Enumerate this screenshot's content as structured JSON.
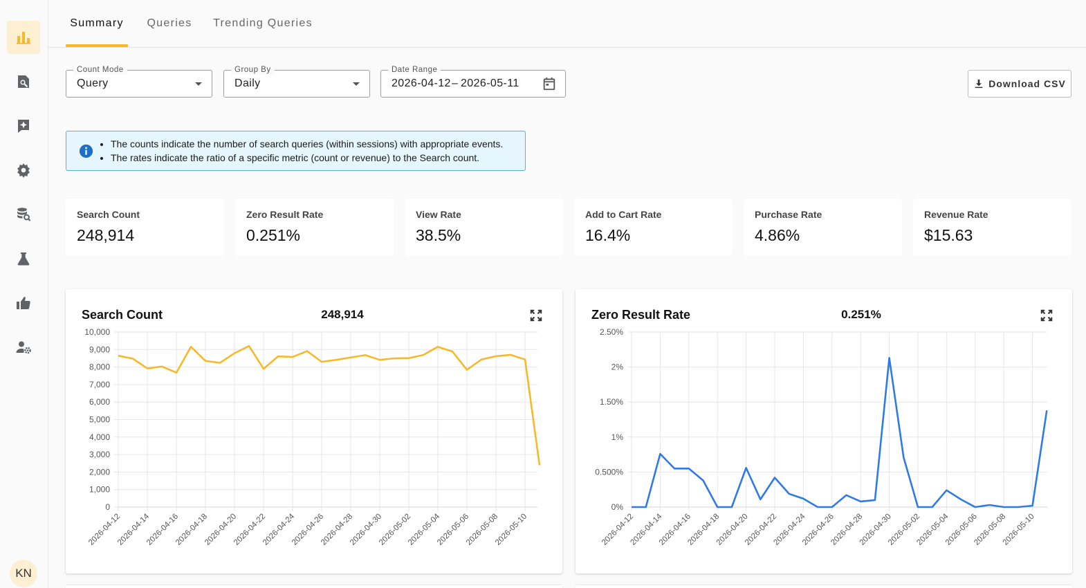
{
  "sidebar": {
    "items": [
      {
        "icon": "bar-chart-icon",
        "active": true
      },
      {
        "icon": "search-document-icon",
        "active": false
      },
      {
        "icon": "sparkle-icon",
        "active": false
      },
      {
        "icon": "gear-icon",
        "active": false
      },
      {
        "icon": "database-search-icon",
        "active": false
      },
      {
        "icon": "flask-icon",
        "active": false
      },
      {
        "icon": "thumbs-up-icon",
        "active": false
      },
      {
        "icon": "user-settings-icon",
        "active": false
      }
    ],
    "avatar": "KN"
  },
  "tabs": [
    {
      "label": "Summary",
      "active": true
    },
    {
      "label": "Queries",
      "active": false
    },
    {
      "label": "Trending Queries",
      "active": false
    }
  ],
  "filters": {
    "count_mode": {
      "label": "Count Mode",
      "value": "Query"
    },
    "group_by": {
      "label": "Group By",
      "value": "Daily"
    },
    "date_range": {
      "label": "Date Range",
      "start": "2026-04-12",
      "separator": "–",
      "end": "2026-05-11"
    }
  },
  "download_label": "Download CSV",
  "info": {
    "lines": [
      "The counts indicate the number of search queries (within sessions) with appropriate events.",
      "The rates indicate the ratio of a specific metric (count or revenue) to the Search count."
    ]
  },
  "metrics": [
    {
      "label": "Search Count",
      "value": "248,914"
    },
    {
      "label": "Zero Result Rate",
      "value": "0.251%"
    },
    {
      "label": "View Rate",
      "value": "38.5%"
    },
    {
      "label": "Add to Cart Rate",
      "value": "16.4%"
    },
    {
      "label": "Purchase Rate",
      "value": "4.86%"
    },
    {
      "label": "Revenue Rate",
      "value": "$15.63"
    }
  ],
  "colors": {
    "accent": "#f6b92b",
    "search_line": "#f6b92b",
    "zero_line": "#2f7ae5",
    "info_bg": "#e5f6fd"
  },
  "chart_data": [
    {
      "type": "line",
      "title": "Search Count",
      "total": "248,914",
      "x": [
        "2026-04-12",
        "2026-04-13",
        "2026-04-14",
        "2026-04-15",
        "2026-04-16",
        "2026-04-17",
        "2026-04-18",
        "2026-04-19",
        "2026-04-20",
        "2026-04-21",
        "2026-04-22",
        "2026-04-23",
        "2026-04-24",
        "2026-04-25",
        "2026-04-26",
        "2026-04-27",
        "2026-04-28",
        "2026-04-29",
        "2026-04-30",
        "2026-05-01",
        "2026-05-02",
        "2026-05-03",
        "2026-05-04",
        "2026-05-05",
        "2026-05-06",
        "2026-05-07",
        "2026-05-08",
        "2026-05-09",
        "2026-05-10",
        "2026-05-11"
      ],
      "x_tick_labels": [
        "2026-04-12",
        "2026-04-14",
        "2026-04-16",
        "2026-04-18",
        "2026-04-20",
        "2026-04-22",
        "2026-04-24",
        "2026-04-26",
        "2026-04-28",
        "2026-04-30",
        "2026-05-02",
        "2026-05-04",
        "2026-05-06",
        "2026-05-08",
        "2026-05-10"
      ],
      "values": [
        8650,
        8480,
        7920,
        8030,
        7680,
        9160,
        8350,
        8240,
        8790,
        9200,
        7900,
        8610,
        8580,
        8910,
        8300,
        8410,
        8550,
        8680,
        8410,
        8500,
        8510,
        8690,
        9160,
        8890,
        7840,
        8430,
        8620,
        8700,
        8430,
        2390
      ],
      "ylim": [
        0,
        10000
      ],
      "y_tick_labels": [
        "0",
        "1,000",
        "2,000",
        "3,000",
        "4,000",
        "5,000",
        "6,000",
        "7,000",
        "8,000",
        "9,000",
        "10,000"
      ],
      "grid": true,
      "legend": "none"
    },
    {
      "type": "line",
      "title": "Zero Result Rate",
      "total": "0.251%",
      "x": [
        "2026-04-12",
        "2026-04-13",
        "2026-04-14",
        "2026-04-15",
        "2026-04-16",
        "2026-04-17",
        "2026-04-18",
        "2026-04-19",
        "2026-04-20",
        "2026-04-21",
        "2026-04-22",
        "2026-04-23",
        "2026-04-24",
        "2026-04-25",
        "2026-04-26",
        "2026-04-27",
        "2026-04-28",
        "2026-04-29",
        "2026-04-30",
        "2026-05-01",
        "2026-05-02",
        "2026-05-03",
        "2026-05-04",
        "2026-05-05",
        "2026-05-06",
        "2026-05-07",
        "2026-05-08",
        "2026-05-09",
        "2026-05-10",
        "2026-05-11"
      ],
      "x_tick_labels": [
        "2026-04-12",
        "2026-04-14",
        "2026-04-16",
        "2026-04-18",
        "2026-04-20",
        "2026-04-22",
        "2026-04-24",
        "2026-04-26",
        "2026-04-28",
        "2026-04-30",
        "2026-05-02",
        "2026-05-04",
        "2026-05-06",
        "2026-05-08",
        "2026-05-10"
      ],
      "values": [
        0,
        0,
        0.76,
        0.55,
        0.55,
        0.38,
        0,
        0,
        0.56,
        0.11,
        0.42,
        0.19,
        0.12,
        0,
        0,
        0.17,
        0.08,
        0.1,
        2.13,
        0.71,
        0,
        0,
        0.24,
        0.11,
        0,
        0.03,
        0,
        0,
        0.02,
        1.38
      ],
      "ylim": [
        0,
        2.5
      ],
      "y_tick_labels": [
        "0%",
        "0.500%",
        "1%",
        "1.50%",
        "2%",
        "2.50%"
      ],
      "grid": true,
      "legend": "none"
    }
  ]
}
